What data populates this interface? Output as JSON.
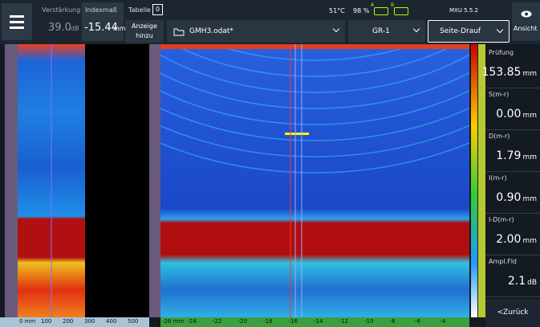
{
  "header": {
    "gain_label": "Verstärkung",
    "gain_value": "39.0",
    "gain_unit": "dB",
    "index_label": "Indexmaß",
    "index_value": "-15.44",
    "index_unit": "mm",
    "table_label": "Tabelle",
    "table_value": "0",
    "add_view": "Anzeige hinzu",
    "file": "GMH3.odat*",
    "temperature": "51°C",
    "battery": "98 %",
    "battery_a": "A",
    "battery_b": "B",
    "version": "MXU 5.5.2",
    "group": "GR-1",
    "view": "Seite-Drauf",
    "ansicht": "Ansicht"
  },
  "readings": [
    {
      "label": "Prüfung",
      "value": "153.85",
      "unit": "mm"
    },
    {
      "label": "S(m-r)",
      "value": "0.00",
      "unit": "mm"
    },
    {
      "label": "D(m-r)",
      "value": "1.79",
      "unit": "mm"
    },
    {
      "label": "I(m-r)",
      "value": "0.90",
      "unit": "mm"
    },
    {
      "label": "I-D(m-r)",
      "value": "2.00",
      "unit": "mm"
    },
    {
      "label": "Ampl.Fld",
      "value": "2.1",
      "unit": "dB"
    }
  ],
  "back": "<Zurück",
  "left_axis": [
    "0 mm",
    "100",
    "200",
    "300",
    "400",
    "500"
  ],
  "main_axis": [
    "-26 mm",
    "-24",
    "-22",
    "-20",
    "-18",
    "-16",
    "-14",
    "-12",
    "-10",
    "-8",
    "-6",
    "-4"
  ]
}
